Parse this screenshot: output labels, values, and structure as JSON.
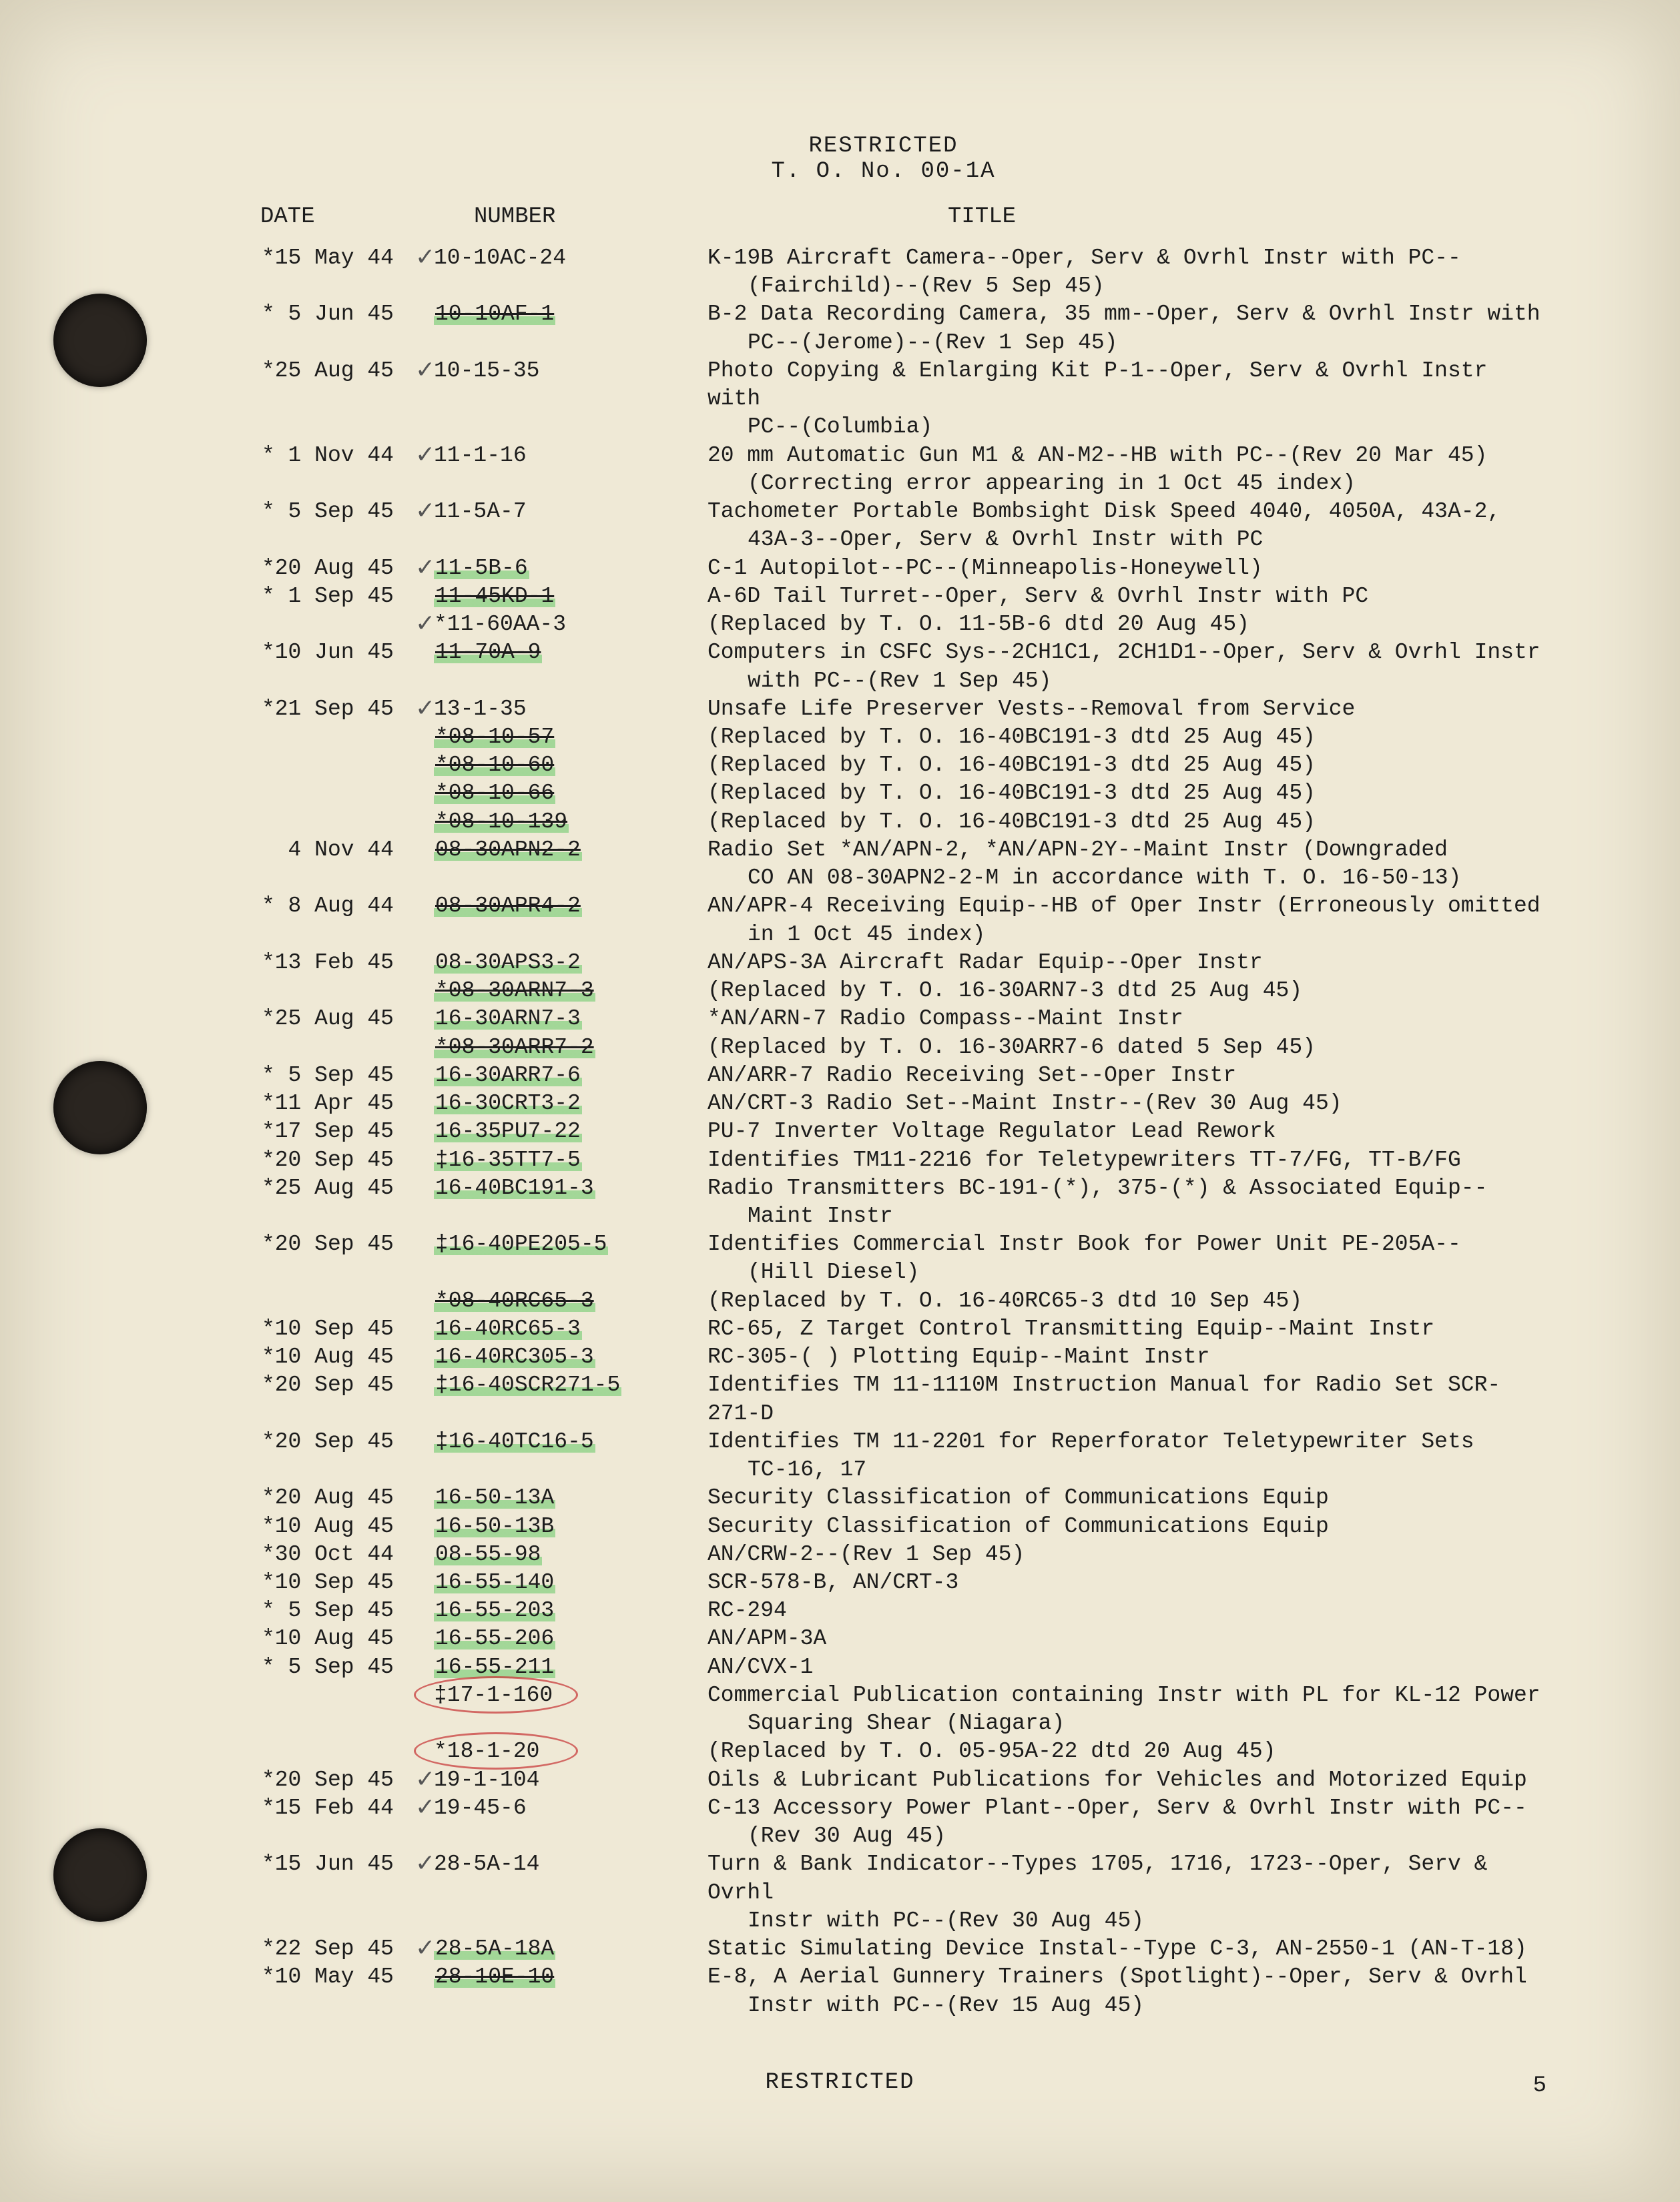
{
  "header": {
    "classification": "RESTRICTED",
    "to_no": "T. O. No. 00-1A"
  },
  "columns": {
    "date": "DATE",
    "number": "NUMBER",
    "title": "TITLE"
  },
  "footer": {
    "classification": "RESTRICTED",
    "page": "5"
  },
  "styling": {
    "background_color": "#efe9d6",
    "text_color": "#1c1c1c",
    "font_family": "Courier New",
    "body_fontsize_pt": 11,
    "highlighter_color": "rgba(100,200,100,0.55)",
    "red_pencil_color": "rgba(200,60,60,0.75)",
    "hole_color": "#2a2520"
  },
  "rows": [
    {
      "date": "*15 May 44",
      "number": "10-10AC-24",
      "mark": "check",
      "title": "K-19B Aircraft Camera--Oper, Serv & Ovrhl Instr with PC--",
      "cont": "(Fairchild)--(Rev 5 Sep 45)"
    },
    {
      "date": "* 5 Jun 45",
      "number": "10-10AF-1",
      "mark": "hl strike",
      "title": "B-2 Data Recording Camera, 35 mm--Oper, Serv & Ovrhl Instr with",
      "cont": "PC--(Jerome)--(Rev 1 Sep 45)"
    },
    {
      "date": "*25 Aug 45",
      "number": "10-15-35",
      "mark": "check",
      "title": "Photo Copying & Enlarging Kit P-1--Oper, Serv & Ovrhl Instr with",
      "cont": "PC--(Columbia)"
    },
    {
      "date": "* 1 Nov 44",
      "number": "11-1-16",
      "mark": "check",
      "title": "20 mm Automatic Gun M1 & AN-M2--HB with PC--(Rev 20 Mar 45)",
      "cont": "(Correcting error appearing in 1 Oct 45 index)"
    },
    {
      "date": "* 5 Sep 45",
      "number": "11-5A-7",
      "mark": "check",
      "title": "Tachometer Portable Bombsight Disk Speed 4040, 4050A, 43A-2,",
      "cont": "43A-3--Oper, Serv & Ovrhl Instr with PC"
    },
    {
      "date": "*20 Aug 45",
      "number": "11-5B-6",
      "mark": "check hl",
      "title": "C-1 Autopilot--PC--(Minneapolis-Honeywell)"
    },
    {
      "date": "* 1 Sep 45",
      "number": "11-45KD-1",
      "mark": "hl strike",
      "title": "A-6D Tail Turret--Oper, Serv & Ovrhl Instr with PC"
    },
    {
      "date": "",
      "number": "*11-60AA-3",
      "mark": "check",
      "title": "(Replaced by T. O. 11-5B-6 dtd 20 Aug 45)"
    },
    {
      "date": "*10 Jun 45",
      "number": "11-70A-9",
      "mark": "hl strike",
      "title": "Computers in CSFC Sys--2CH1C1, 2CH1D1--Oper, Serv & Ovrhl Instr",
      "cont": "with PC--(Rev 1 Sep 45)"
    },
    {
      "date": "*21 Sep 45",
      "number": "13-1-35",
      "mark": "check",
      "title": "Unsafe Life Preserver Vests--Removal from Service"
    },
    {
      "date": "",
      "number": "*08-10-57",
      "mark": "hl strike",
      "title": "(Replaced by T. O. 16-40BC191-3 dtd 25 Aug 45)"
    },
    {
      "date": "",
      "number": "*08-10-60",
      "mark": "hl strike",
      "title": "(Replaced by T. O. 16-40BC191-3 dtd 25 Aug 45)"
    },
    {
      "date": "",
      "number": "*08-10-66",
      "mark": "hl strike",
      "title": "(Replaced by T. O. 16-40BC191-3 dtd 25 Aug 45)"
    },
    {
      "date": "",
      "number": "*08-10-139",
      "mark": "hl strike",
      "title": "(Replaced by T. O. 16-40BC191-3 dtd 25 Aug 45)"
    },
    {
      "date": "  4 Nov 44",
      "number": "08-30APN2-2",
      "mark": "hl strike",
      "title": "Radio Set *AN/APN-2, *AN/APN-2Y--Maint Instr (Downgraded",
      "cont": "CO AN 08-30APN2-2-M in accordance with T. O. 16-50-13)"
    },
    {
      "date": "* 8 Aug 44",
      "number": "08-30APR4-2",
      "mark": "hl strike",
      "title": "AN/APR-4 Receiving Equip--HB of Oper Instr (Erroneously omitted",
      "cont": "in 1 Oct 45 index)"
    },
    {
      "date": "*13 Feb 45",
      "number": "08-30APS3-2",
      "mark": "hl",
      "title": "AN/APS-3A Aircraft Radar Equip--Oper Instr"
    },
    {
      "date": "",
      "number": "*08-30ARN7-3",
      "mark": "hl strike",
      "title": "(Replaced by T. O. 16-30ARN7-3 dtd 25 Aug 45)"
    },
    {
      "date": "*25 Aug 45",
      "number": "16-30ARN7-3",
      "mark": "hl",
      "title": "*AN/ARN-7 Radio Compass--Maint Instr"
    },
    {
      "date": "",
      "number": "*08-30ARR7-2",
      "mark": "hl strike",
      "title": "(Replaced by T. O. 16-30ARR7-6 dated 5 Sep 45)"
    },
    {
      "date": "* 5 Sep 45",
      "number": "16-30ARR7-6",
      "mark": "hl",
      "title": "AN/ARR-7 Radio Receiving Set--Oper Instr"
    },
    {
      "date": "*11 Apr 45",
      "number": "16-30CRT3-2",
      "mark": "hl",
      "title": "AN/CRT-3 Radio Set--Maint Instr--(Rev 30 Aug 45)"
    },
    {
      "date": "*17 Sep 45",
      "number": "16-35PU7-22",
      "mark": "hl",
      "title": "PU-7 Inverter Voltage Regulator Lead Rework"
    },
    {
      "date": "*20 Sep 45",
      "number": "‡16-35TT7-5",
      "mark": "hl",
      "title": "Identifies TM11-2216 for Teletypewriters TT-7/FG, TT-B/FG"
    },
    {
      "date": "*25 Aug 45",
      "number": "16-40BC191-3",
      "mark": "hl",
      "title": "Radio Transmitters BC-191-(*), 375-(*) & Associated Equip--",
      "cont": "Maint Instr"
    },
    {
      "date": "*20 Sep 45",
      "number": "‡16-40PE205-5",
      "mark": "hl",
      "title": "Identifies Commercial Instr Book for Power Unit PE-205A--",
      "cont": "(Hill Diesel)"
    },
    {
      "date": "",
      "number": "*08-40RC65-3",
      "mark": "hl strike",
      "title": "(Replaced by T. O. 16-40RC65-3 dtd 10 Sep 45)"
    },
    {
      "date": "*10 Sep 45",
      "number": "16-40RC65-3",
      "mark": "hl",
      "title": "RC-65, Z Target Control Transmitting Equip--Maint Instr"
    },
    {
      "date": "*10 Aug 45",
      "number": "16-40RC305-3",
      "mark": "hl",
      "title": "RC-305-( ) Plotting Equip--Maint Instr"
    },
    {
      "date": "*20 Sep 45",
      "number": "‡16-40SCR271-5",
      "mark": "hl",
      "title": "Identifies TM 11-1110M Instruction Manual for Radio Set SCR-271-D"
    },
    {
      "date": "*20 Sep 45",
      "number": "‡16-40TC16-5",
      "mark": "hl",
      "title": "Identifies TM 11-2201 for Reperforator Teletypewriter Sets",
      "cont": "TC-16, 17"
    },
    {
      "date": "*20 Aug 45",
      "number": "16-50-13A",
      "mark": "hl",
      "title": "Security Classification of Communications Equip"
    },
    {
      "date": "*10 Aug 45",
      "number": "16-50-13B",
      "mark": "hl",
      "title": "Security Classification of Communications Equip"
    },
    {
      "date": "*30 Oct 44",
      "number": "08-55-98",
      "mark": "hl",
      "title": "AN/CRW-2--(Rev 1 Sep 45)"
    },
    {
      "date": "*10 Sep 45",
      "number": "16-55-140",
      "mark": "hl",
      "title": "SCR-578-B, AN/CRT-3"
    },
    {
      "date": "* 5 Sep 45",
      "number": "16-55-203",
      "mark": "hl",
      "title": "RC-294"
    },
    {
      "date": "*10 Aug 45",
      "number": "16-55-206",
      "mark": "hl",
      "title": "AN/APM-3A"
    },
    {
      "date": "* 5 Sep 45",
      "number": "16-55-211",
      "mark": "hl",
      "title": "AN/CVX-1"
    },
    {
      "date": "",
      "number": "‡17-1-160",
      "mark": "redcircle",
      "title": "Commercial Publication containing Instr with PL for KL-12 Power",
      "cont": "Squaring Shear (Niagara)"
    },
    {
      "date": "",
      "number": "*18-1-20",
      "mark": "redcircle",
      "title": "(Replaced by T. O. 05-95A-22 dtd 20 Aug 45)"
    },
    {
      "date": "*20 Sep 45",
      "number": "19-1-104",
      "mark": "check",
      "title": "Oils & Lubricant Publications for Vehicles and Motorized Equip"
    },
    {
      "date": "*15 Feb 44",
      "number": "19-45-6",
      "mark": "check",
      "title": "C-13 Accessory Power Plant--Oper, Serv & Ovrhl Instr with PC--",
      "cont": "(Rev 30 Aug 45)"
    },
    {
      "date": "*15 Jun 45",
      "number": "28-5A-14",
      "mark": "check",
      "title": "Turn & Bank Indicator--Types 1705, 1716, 1723--Oper, Serv & Ovrhl",
      "cont": "Instr with PC--(Rev 30 Aug 45)"
    },
    {
      "date": "*22 Sep 45",
      "number": "28-5A-18A",
      "mark": "check hl",
      "title": "Static Simulating Device Instal--Type C-3, AN-2550-1 (AN-T-18)"
    },
    {
      "date": "*10 May 45",
      "number": "28-10E-10",
      "mark": "hl strike",
      "title": "E-8, A Aerial Gunnery Trainers (Spotlight)--Oper, Serv & Ovrhl",
      "cont": "Instr with PC--(Rev 15 Aug 45)"
    }
  ]
}
